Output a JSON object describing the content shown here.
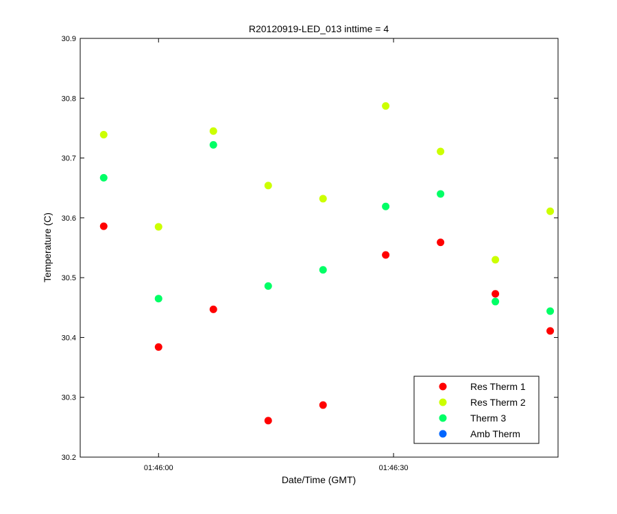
{
  "chart_data": {
    "type": "scatter",
    "title": "R20120919-LED_013 inttime = 4",
    "xlabel": "Date/Time (GMT)",
    "ylabel": "Temperature (C)",
    "x_unit": "time (HH:MM:SS, GMT)",
    "xlim": [
      "01:45:50",
      "01:46:51"
    ],
    "ylim": [
      30.2,
      30.9
    ],
    "x_ticks": [
      "01:46:00",
      "01:46:30"
    ],
    "y_ticks": [
      "30.2",
      "30.3",
      "30.4",
      "30.5",
      "30.6",
      "30.7",
      "30.8",
      "30.9"
    ],
    "grid": false,
    "legend_position": "bottom-right",
    "x": [
      "01:45:53",
      "01:46:00",
      "01:46:07",
      "01:46:14",
      "01:46:21",
      "01:46:29",
      "01:46:36",
      "01:46:43",
      "01:46:50"
    ],
    "series": [
      {
        "name": "Res Therm 1",
        "color": "#ff0000",
        "values": [
          30.586,
          30.384,
          30.447,
          30.261,
          30.287,
          30.538,
          30.559,
          30.473,
          30.411
        ]
      },
      {
        "name": "Res Therm 2",
        "color": "#ccff00",
        "values": [
          30.739,
          30.585,
          30.745,
          30.654,
          30.632,
          30.787,
          30.711,
          30.53,
          30.611
        ]
      },
      {
        "name": "Therm 3",
        "color": "#00ff66",
        "values": [
          30.667,
          30.465,
          30.722,
          30.486,
          30.513,
          30.619,
          30.64,
          30.46,
          30.444
        ]
      },
      {
        "name": "Amb Therm",
        "color": "#0066ff",
        "values": []
      }
    ]
  }
}
